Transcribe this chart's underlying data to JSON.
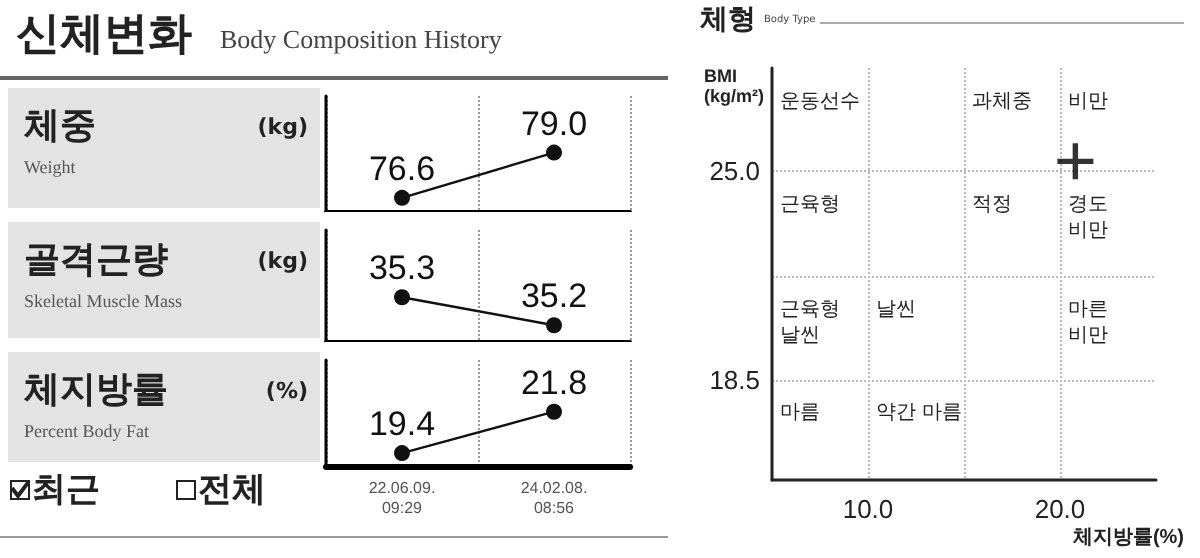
{
  "chart_data": [
    {
      "type": "other",
      "title": "신체변화",
      "subtitle": "Body Composition History"
    },
    {
      "type": "line",
      "ylabel": "체중",
      "annotations": [
        "Weight",
        "(kg)"
      ],
      "categories": [
        null,
        null
      ],
      "series": [
        {
          "color": "#111111",
          "values": [
            76.6,
            79.0
          ],
          "value_labels": [
            "76.6",
            "79.0"
          ]
        }
      ],
      "marker": "circle",
      "grid": "x",
      "tick_labels": false
    },
    {
      "type": "line",
      "ylabel": "골격근량",
      "annotations": [
        "Skeletal Muscle Mass",
        "(kg)"
      ],
      "categories": [
        null,
        null
      ],
      "series": [
        {
          "color": "#111111",
          "values": [
            35.3,
            35.2
          ],
          "value_labels": [
            "35.3",
            "35.2"
          ]
        }
      ],
      "marker": "circle",
      "grid": "x",
      "tick_labels": false
    },
    {
      "type": "line",
      "ylabel": "체지방률",
      "annotations": [
        "Percent Body Fat",
        "(%)",
        "최근",
        "전체"
      ],
      "categories": [
        "22.06.09.\n09:29",
        "24.02.08.\n08:56"
      ],
      "series": [
        {
          "color": "#111111",
          "values": [
            19.4,
            21.8
          ],
          "value_labels": [
            "19.4",
            "21.8"
          ]
        }
      ],
      "marker": "circle",
      "grid": "x",
      "tick_labels": "x"
    },
    {
      "type": "scatter",
      "title": "체형",
      "subtitle": "Body Type",
      "ylabel": "BMI\n(kg/m²)",
      "xlabel": "체지방률(%)",
      "x": [
        20.8
      ],
      "values": [
        25.3
      ],
      "color": "#000000",
      "marker": "cross",
      "grid": true,
      "xlim": [
        5,
        25
      ],
      "xticks": [
        {
          "value": 10,
          "label": "10.0"
        },
        {
          "value": 15,
          "label": null
        },
        {
          "value": 20,
          "label": "20.0"
        }
      ],
      "ylim": [
        15.4,
        28.2
      ],
      "yticks": [
        {
          "value": 18.5,
          "label": "18.5"
        },
        {
          "value": 21.75,
          "label": null
        },
        {
          "value": 25,
          "label": "25.0"
        }
      ],
      "annotations": [
        "운동선수",
        "과체중",
        "비만",
        "근육형",
        "적정",
        "경도\n비만",
        "근육형\n날씬",
        "날씬",
        "마른\n비만",
        "마름",
        "약간 마름"
      ]
    }
  ]
}
